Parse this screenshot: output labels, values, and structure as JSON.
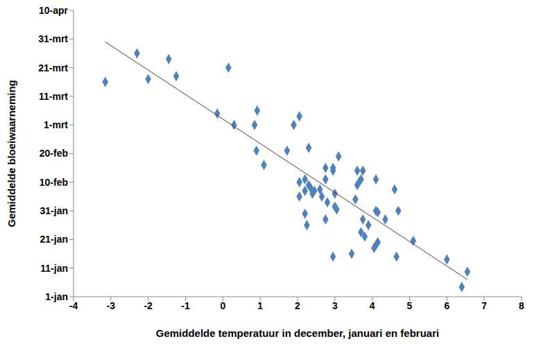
{
  "chart_data": {
    "type": "scatter",
    "x_label": "Gemiddelde temperatuur in december, januari en februari",
    "y_label": "Gemiddelde bloeiwaarneming",
    "xlim": [
      -4,
      8
    ],
    "xticks": [
      -4,
      -3,
      -2,
      -1,
      0,
      1,
      2,
      3,
      4,
      5,
      6,
      7,
      8
    ],
    "ylim": [
      0,
      100
    ],
    "yticks": [
      {
        "value": 0,
        "label": "1-jan"
      },
      {
        "value": 10,
        "label": "11-jan"
      },
      {
        "value": 20,
        "label": "21-jan"
      },
      {
        "value": 30,
        "label": "31-jan"
      },
      {
        "value": 40,
        "label": "10-feb"
      },
      {
        "value": 50,
        "label": "20-feb"
      },
      {
        "value": 60,
        "label": "1-mrt"
      },
      {
        "value": 70,
        "label": "11-mrt"
      },
      {
        "value": 80,
        "label": "21-mrt"
      },
      {
        "value": 90,
        "label": "31-mrt"
      },
      {
        "value": 100,
        "label": "10-apr"
      }
    ],
    "grid": false,
    "series": [
      {
        "type": "scatter",
        "color": "#4f81bd",
        "marker": "diamond",
        "x": [
          -3.15,
          -2.3,
          -2.0,
          -1.45,
          -1.25,
          0.15,
          -0.15,
          0.3,
          0.85,
          0.92,
          0.9,
          1.1,
          1.72,
          1.9,
          2.05,
          2.3,
          2.05,
          2.05,
          2.2,
          2.2,
          2.3,
          2.35,
          2.4,
          2.45,
          2.6,
          2.65,
          2.75,
          2.75,
          2.8,
          2.95,
          2.95,
          3.0,
          3.0,
          3.05,
          3.1,
          2.2,
          2.25,
          2.75,
          2.95,
          3.45,
          3.55,
          3.6,
          3.6,
          3.65,
          3.7,
          3.75,
          3.7,
          3.75,
          3.8,
          3.9,
          4.05,
          4.1,
          4.15,
          4.1,
          4.1,
          4.15,
          4.35,
          4.6,
          4.65,
          4.7,
          5.1,
          6.0,
          6.4,
          6.55
        ],
        "values": [
          75,
          85,
          76,
          83,
          77,
          80,
          64,
          60,
          60,
          65,
          51,
          46,
          51,
          60,
          63,
          52,
          40,
          35,
          41,
          37,
          39,
          38,
          36,
          37,
          37.5,
          35,
          45,
          41,
          33,
          44,
          45,
          36,
          31.5,
          30.5,
          49,
          29,
          25,
          27,
          14,
          15,
          34,
          44,
          39,
          40,
          41,
          44,
          22.5,
          27,
          21,
          25,
          17,
          18,
          19,
          41,
          30,
          29.5,
          27,
          37.5,
          14,
          30,
          19.5,
          13,
          3.4,
          8.7
        ]
      },
      {
        "type": "line",
        "color": "#404040",
        "line_style": "solid",
        "x": [
          -3.15,
          6.55
        ],
        "values": [
          89,
          6
        ]
      }
    ]
  }
}
